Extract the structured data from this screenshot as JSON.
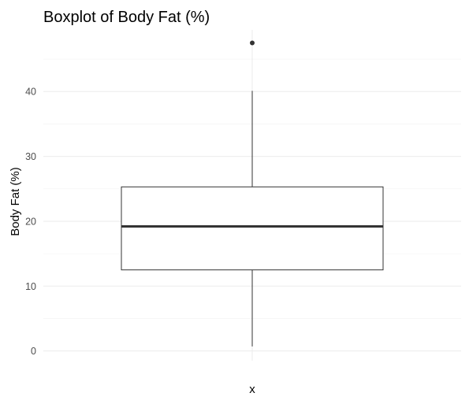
{
  "chart_data": {
    "type": "boxplot",
    "title": "Boxplot of Body Fat (%)",
    "xlabel": "x",
    "ylabel": "Body Fat (%)",
    "ylim": [
      -1.5,
      49.5
    ],
    "yticks": [
      0,
      10,
      20,
      30,
      40
    ],
    "ytick_labels": [
      "0",
      "10",
      "20",
      "30",
      "40"
    ],
    "grid": true,
    "series": [
      {
        "whisker_low": 0.7,
        "q1": 12.5,
        "median": 19.2,
        "q3": 25.3,
        "whisker_high": 40.1,
        "outliers": [
          47.5
        ]
      }
    ],
    "colors": {
      "box_stroke": "#333333",
      "box_fill": "#ffffff",
      "grid_major": "#ebebeb",
      "grid_minor": "#f2f2f2",
      "tick_text": "#4d4d4d"
    }
  }
}
